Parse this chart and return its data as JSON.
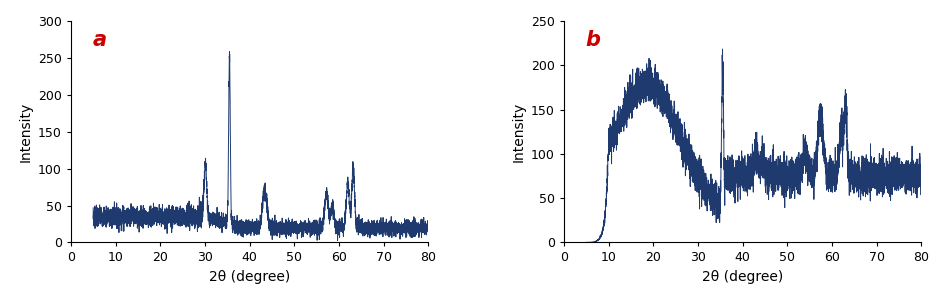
{
  "line_color": "#1f3a6e",
  "line_width": 0.7,
  "background_color": "#ffffff",
  "label_a": "a",
  "label_b": "b",
  "label_color": "#cc0000",
  "label_fontsize": 15,
  "xlabel": "2θ (degree)",
  "ylabel": "Intensity",
  "xlabel_fontsize": 10,
  "ylabel_fontsize": 10,
  "tick_fontsize": 9,
  "xlim": [
    0,
    80
  ],
  "ylim_a": [
    0,
    300
  ],
  "ylim_b": [
    0,
    250
  ],
  "yticks_a": [
    0,
    50,
    100,
    150,
    200,
    250,
    300
  ],
  "yticks_b": [
    0,
    50,
    100,
    150,
    200,
    250
  ],
  "xticks": [
    0,
    10,
    20,
    30,
    40,
    50,
    60,
    70,
    80
  ]
}
